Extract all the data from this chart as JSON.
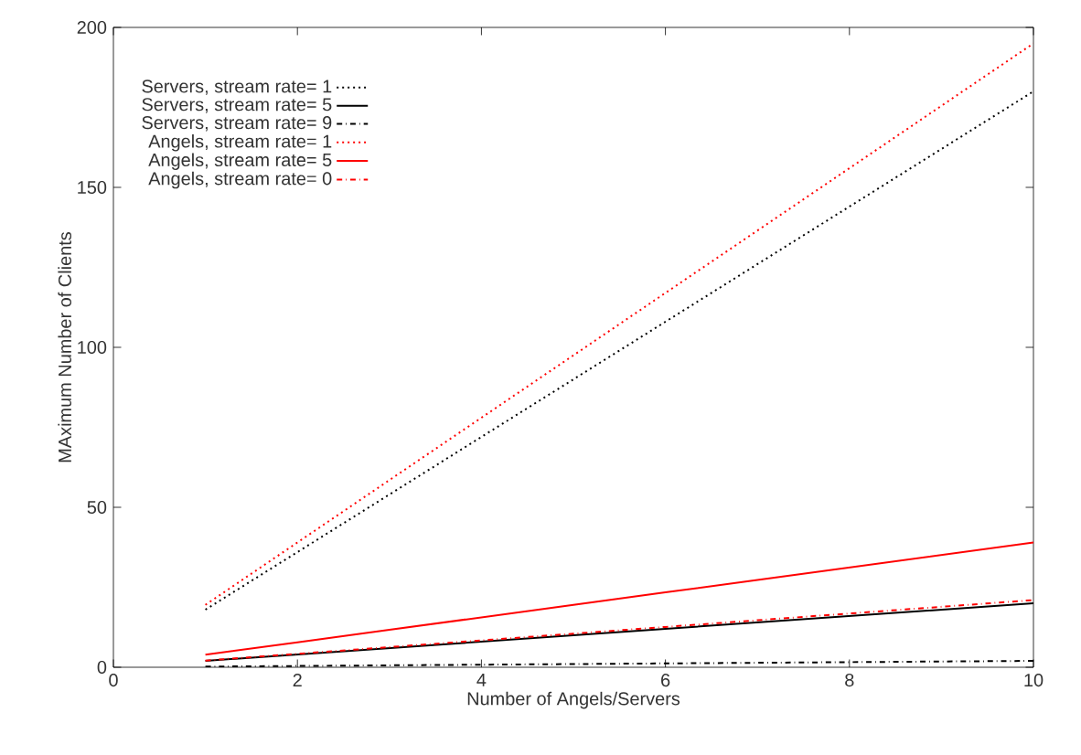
{
  "chart_data": {
    "type": "line",
    "xlabel": "Number of Angels/Servers",
    "ylabel": "MAximum Number of Clients",
    "xlim": [
      0,
      10
    ],
    "ylim": [
      0,
      200
    ],
    "xticks": [
      0,
      2,
      4,
      6,
      8,
      10
    ],
    "yticks": [
      0,
      50,
      100,
      150,
      200
    ],
    "legend": "top left",
    "grid": false,
    "marker": "none",
    "series": [
      {
        "name": "Servers, stream rate= 1",
        "color": "#000000",
        "line_style": "dotted",
        "x": [
          1,
          2,
          3,
          4,
          5,
          6,
          7,
          8,
          9,
          10
        ],
        "values": [
          18,
          36,
          54,
          72,
          90,
          108,
          126,
          144,
          162,
          180
        ]
      },
      {
        "name": "Servers, stream rate= 5",
        "color": "#000000",
        "line_style": "solid",
        "x": [
          1,
          2,
          3,
          4,
          5,
          6,
          7,
          8,
          9,
          10
        ],
        "values": [
          2,
          4,
          6,
          8,
          10,
          12,
          14,
          16,
          18,
          20
        ]
      },
      {
        "name": "Servers, stream rate= 9",
        "color": "#000000",
        "line_style": "dashdot",
        "x": [
          1,
          2,
          3,
          4,
          5,
          6,
          7,
          8,
          9,
          10
        ],
        "values": [
          0.2,
          0.4,
          0.6,
          0.8,
          1,
          1.2,
          1.4,
          1.6,
          1.8,
          2
        ]
      },
      {
        "name": "Angels, stream rate= 1",
        "color": "#ff0000",
        "line_style": "dotted",
        "x": [
          1,
          2,
          3,
          4,
          5,
          6,
          7,
          8,
          9,
          10
        ],
        "values": [
          19.5,
          39,
          58.5,
          78,
          97.5,
          117,
          136.5,
          156,
          175.5,
          195
        ]
      },
      {
        "name": "Angels, stream rate= 5",
        "color": "#ff0000",
        "line_style": "solid",
        "x": [
          1,
          2,
          3,
          4,
          5,
          6,
          7,
          8,
          9,
          10
        ],
        "values": [
          3.9,
          7.8,
          11.7,
          15.6,
          19.5,
          23.4,
          27.3,
          31.2,
          35.1,
          39
        ]
      },
      {
        "name": "Angels, stream rate= 0",
        "color": "#ff0000",
        "line_style": "dashdot",
        "x": [
          1,
          2,
          3,
          4,
          5,
          6,
          7,
          8,
          9,
          10
        ],
        "values": [
          2.1,
          4.2,
          6.3,
          8.4,
          10.5,
          12.6,
          14.7,
          16.8,
          18.9,
          21
        ]
      }
    ]
  }
}
